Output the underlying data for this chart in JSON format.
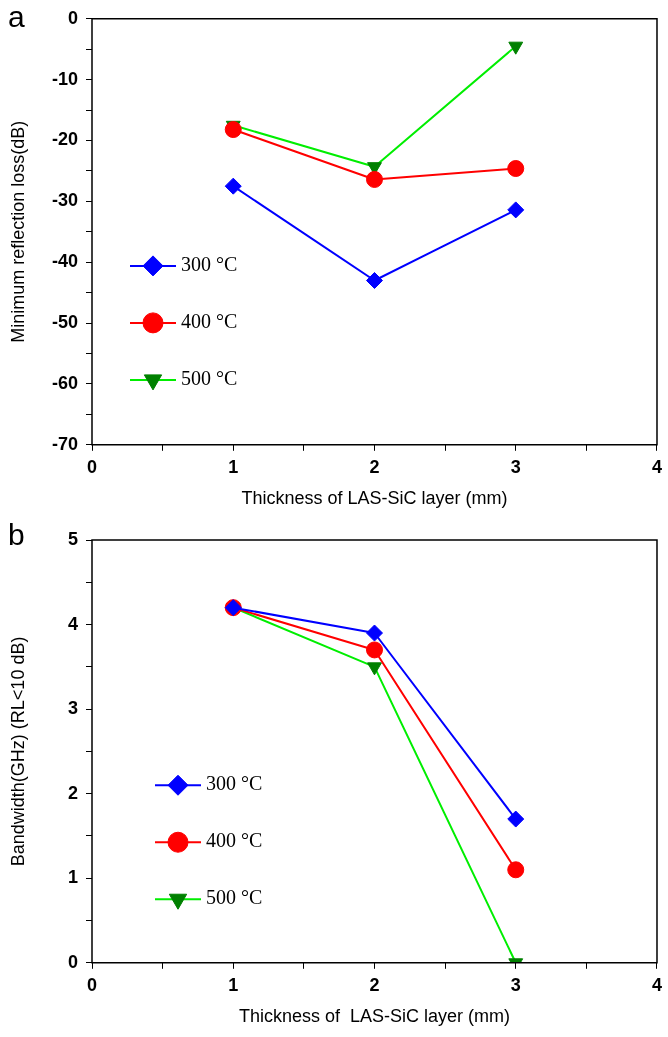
{
  "chart_data": [
    {
      "type": "line",
      "annotations": [
        "a"
      ],
      "xlabel": "Thickness of LAS-SiC layer (mm)",
      "ylabel": "Minimum reflection loss(dB)",
      "x": [
        1,
        2,
        3
      ],
      "xlim": [
        0,
        4
      ],
      "xticks": [
        0,
        {
          "value": 0.5,
          "label": null
        },
        1,
        {
          "value": 1.5,
          "label": null
        },
        2,
        {
          "value": 2.5,
          "label": null
        },
        3,
        {
          "value": 3.5,
          "label": null
        },
        4
      ],
      "ylim": [
        -70,
        0
      ],
      "yticks": [
        -70,
        {
          "value": -65,
          "label": null
        },
        -60,
        {
          "value": -55,
          "label": null
        },
        -50,
        {
          "value": -45,
          "label": null
        },
        -40,
        {
          "value": -35,
          "label": null
        },
        -30,
        {
          "value": -25,
          "label": null
        },
        -20,
        {
          "value": -15,
          "label": null
        },
        -10,
        {
          "value": -5,
          "label": null
        },
        0
      ],
      "grid": false,
      "legend": "left",
      "line_style": "solid",
      "series": [
        {
          "name": "300 °C",
          "color": "#0000ff",
          "marker": "diamond",
          "values": [
            -27.5,
            -43,
            -31.4
          ]
        },
        {
          "name": "400 °C",
          "color": "#ff0000",
          "marker": "circle",
          "values": [
            -18.2,
            -26.4,
            -24.6
          ]
        },
        {
          "name": "500 °C",
          "color": "#00ee00",
          "marker": "triangle",
          "values": [
            -17.5,
            -24.3,
            -4.5
          ]
        }
      ]
    },
    {
      "type": "line",
      "annotations": [
        "b"
      ],
      "xlabel": "Thickness of  LAS-SiC layer (mm)",
      "ylabel": "Bandwidth(GHz) (RL<10 dB)",
      "x": [
        1,
        2,
        3
      ],
      "xlim": [
        0,
        4
      ],
      "xticks": [
        0,
        {
          "value": 0.5,
          "label": null
        },
        1,
        {
          "value": 1.5,
          "label": null
        },
        2,
        {
          "value": 2.5,
          "label": null
        },
        3,
        {
          "value": 3.5,
          "label": null
        },
        4
      ],
      "ylim": [
        0,
        5
      ],
      "yticks": [
        0,
        {
          "value": 0.5,
          "label": null
        },
        1,
        {
          "value": 1.5,
          "label": null
        },
        2,
        {
          "value": 2.5,
          "label": null
        },
        3,
        {
          "value": 3.5,
          "label": null
        },
        4,
        {
          "value": 4.5,
          "label": null
        },
        5
      ],
      "grid": false,
      "legend": "left",
      "line_style": "solid",
      "series": [
        {
          "name": "300 °C",
          "color": "#0000ff",
          "marker": "diamond",
          "values": [
            4.2,
            3.9,
            1.7
          ]
        },
        {
          "name": "400 °C",
          "color": "#ff0000",
          "marker": "circle",
          "values": [
            4.2,
            3.7,
            1.1
          ]
        },
        {
          "name": "500 °C",
          "color": "#00ee00",
          "marker": "triangle",
          "values": [
            4.2,
            3.5,
            0
          ]
        }
      ]
    }
  ]
}
